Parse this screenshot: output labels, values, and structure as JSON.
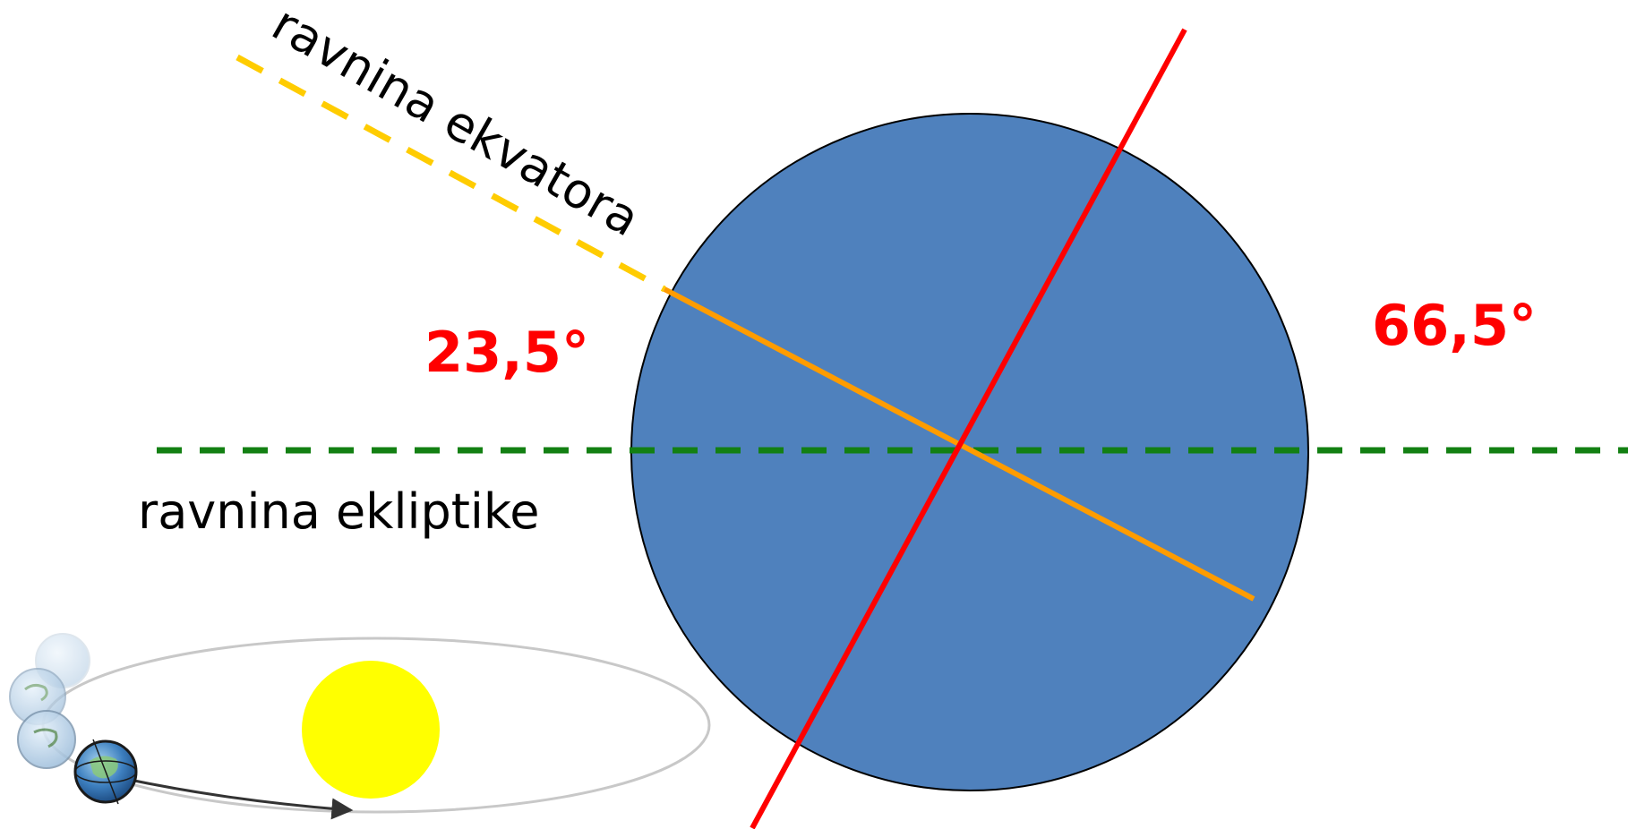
{
  "diagram": {
    "labels": {
      "equator_plane": "ravnina ekvatora",
      "ecliptic_plane": "ravnina ekliptike",
      "angle_small": "23,5°",
      "angle_large": "66,5°"
    },
    "colors": {
      "earth_fill": "#4f81bd",
      "earth_stroke": "#000000",
      "axis": "#ff0000",
      "equator_solid": "#ff9c00",
      "equator_dashed": "#ffcc00",
      "ecliptic": "#138013",
      "angle_text": "#ff0000",
      "label_text": "#000000",
      "sun": "#ffff00",
      "orbit": "#c8c8c8",
      "orbit_arrow": "#333333"
    },
    "illustration": {
      "sun": "sun-icon",
      "earth_positions": [
        "earth-globe-icon",
        "earth-globe-icon",
        "earth-globe-icon",
        "earth-globe-icon"
      ]
    }
  }
}
